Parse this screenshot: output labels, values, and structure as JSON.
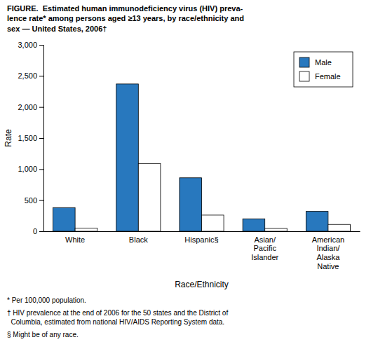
{
  "chart_data": {
    "type": "bar",
    "title": "FIGURE.  Estimated human immunodeficiency virus (HIV) preva-\nlence rate* among persons aged ≥13 years, by race/ethnicity and\nsex — United States, 2006†",
    "categories": [
      "White",
      "Black",
      "Hispanic§",
      "Asian/\nPacific\nIslander",
      "American\nIndian/\nAlaska\nNative"
    ],
    "series": [
      {
        "name": "Male",
        "color": "#2878BE",
        "values": [
          380,
          2370,
          860,
          200,
          320
        ]
      },
      {
        "name": "Female",
        "color": "#FFFFFF",
        "values": [
          50,
          1090,
          260,
          45,
          110
        ]
      }
    ],
    "xlabel": "Race/Ethnicity",
    "ylabel": "Rate",
    "ylim": [
      0,
      3000
    ],
    "yticks": [
      0,
      500,
      {
        "value": 1000,
        "label": "1,000"
      },
      {
        "value": 1500,
        "label": "1,500"
      },
      {
        "value": 2000,
        "label": "2,000"
      },
      {
        "value": 2500,
        "label": "2,500"
      },
      {
        "value": 3000,
        "label": "3,000"
      }
    ],
    "grid": false,
    "legend": "upper right",
    "annotations": [
      "* Per 100,000 population.",
      "† HIV prevalence at the end of 2006 for the 50 states and the District of\n  Columbia, estimated from national HIV/AIDS Reporting System data.",
      "§ Might be of any race."
    ]
  }
}
